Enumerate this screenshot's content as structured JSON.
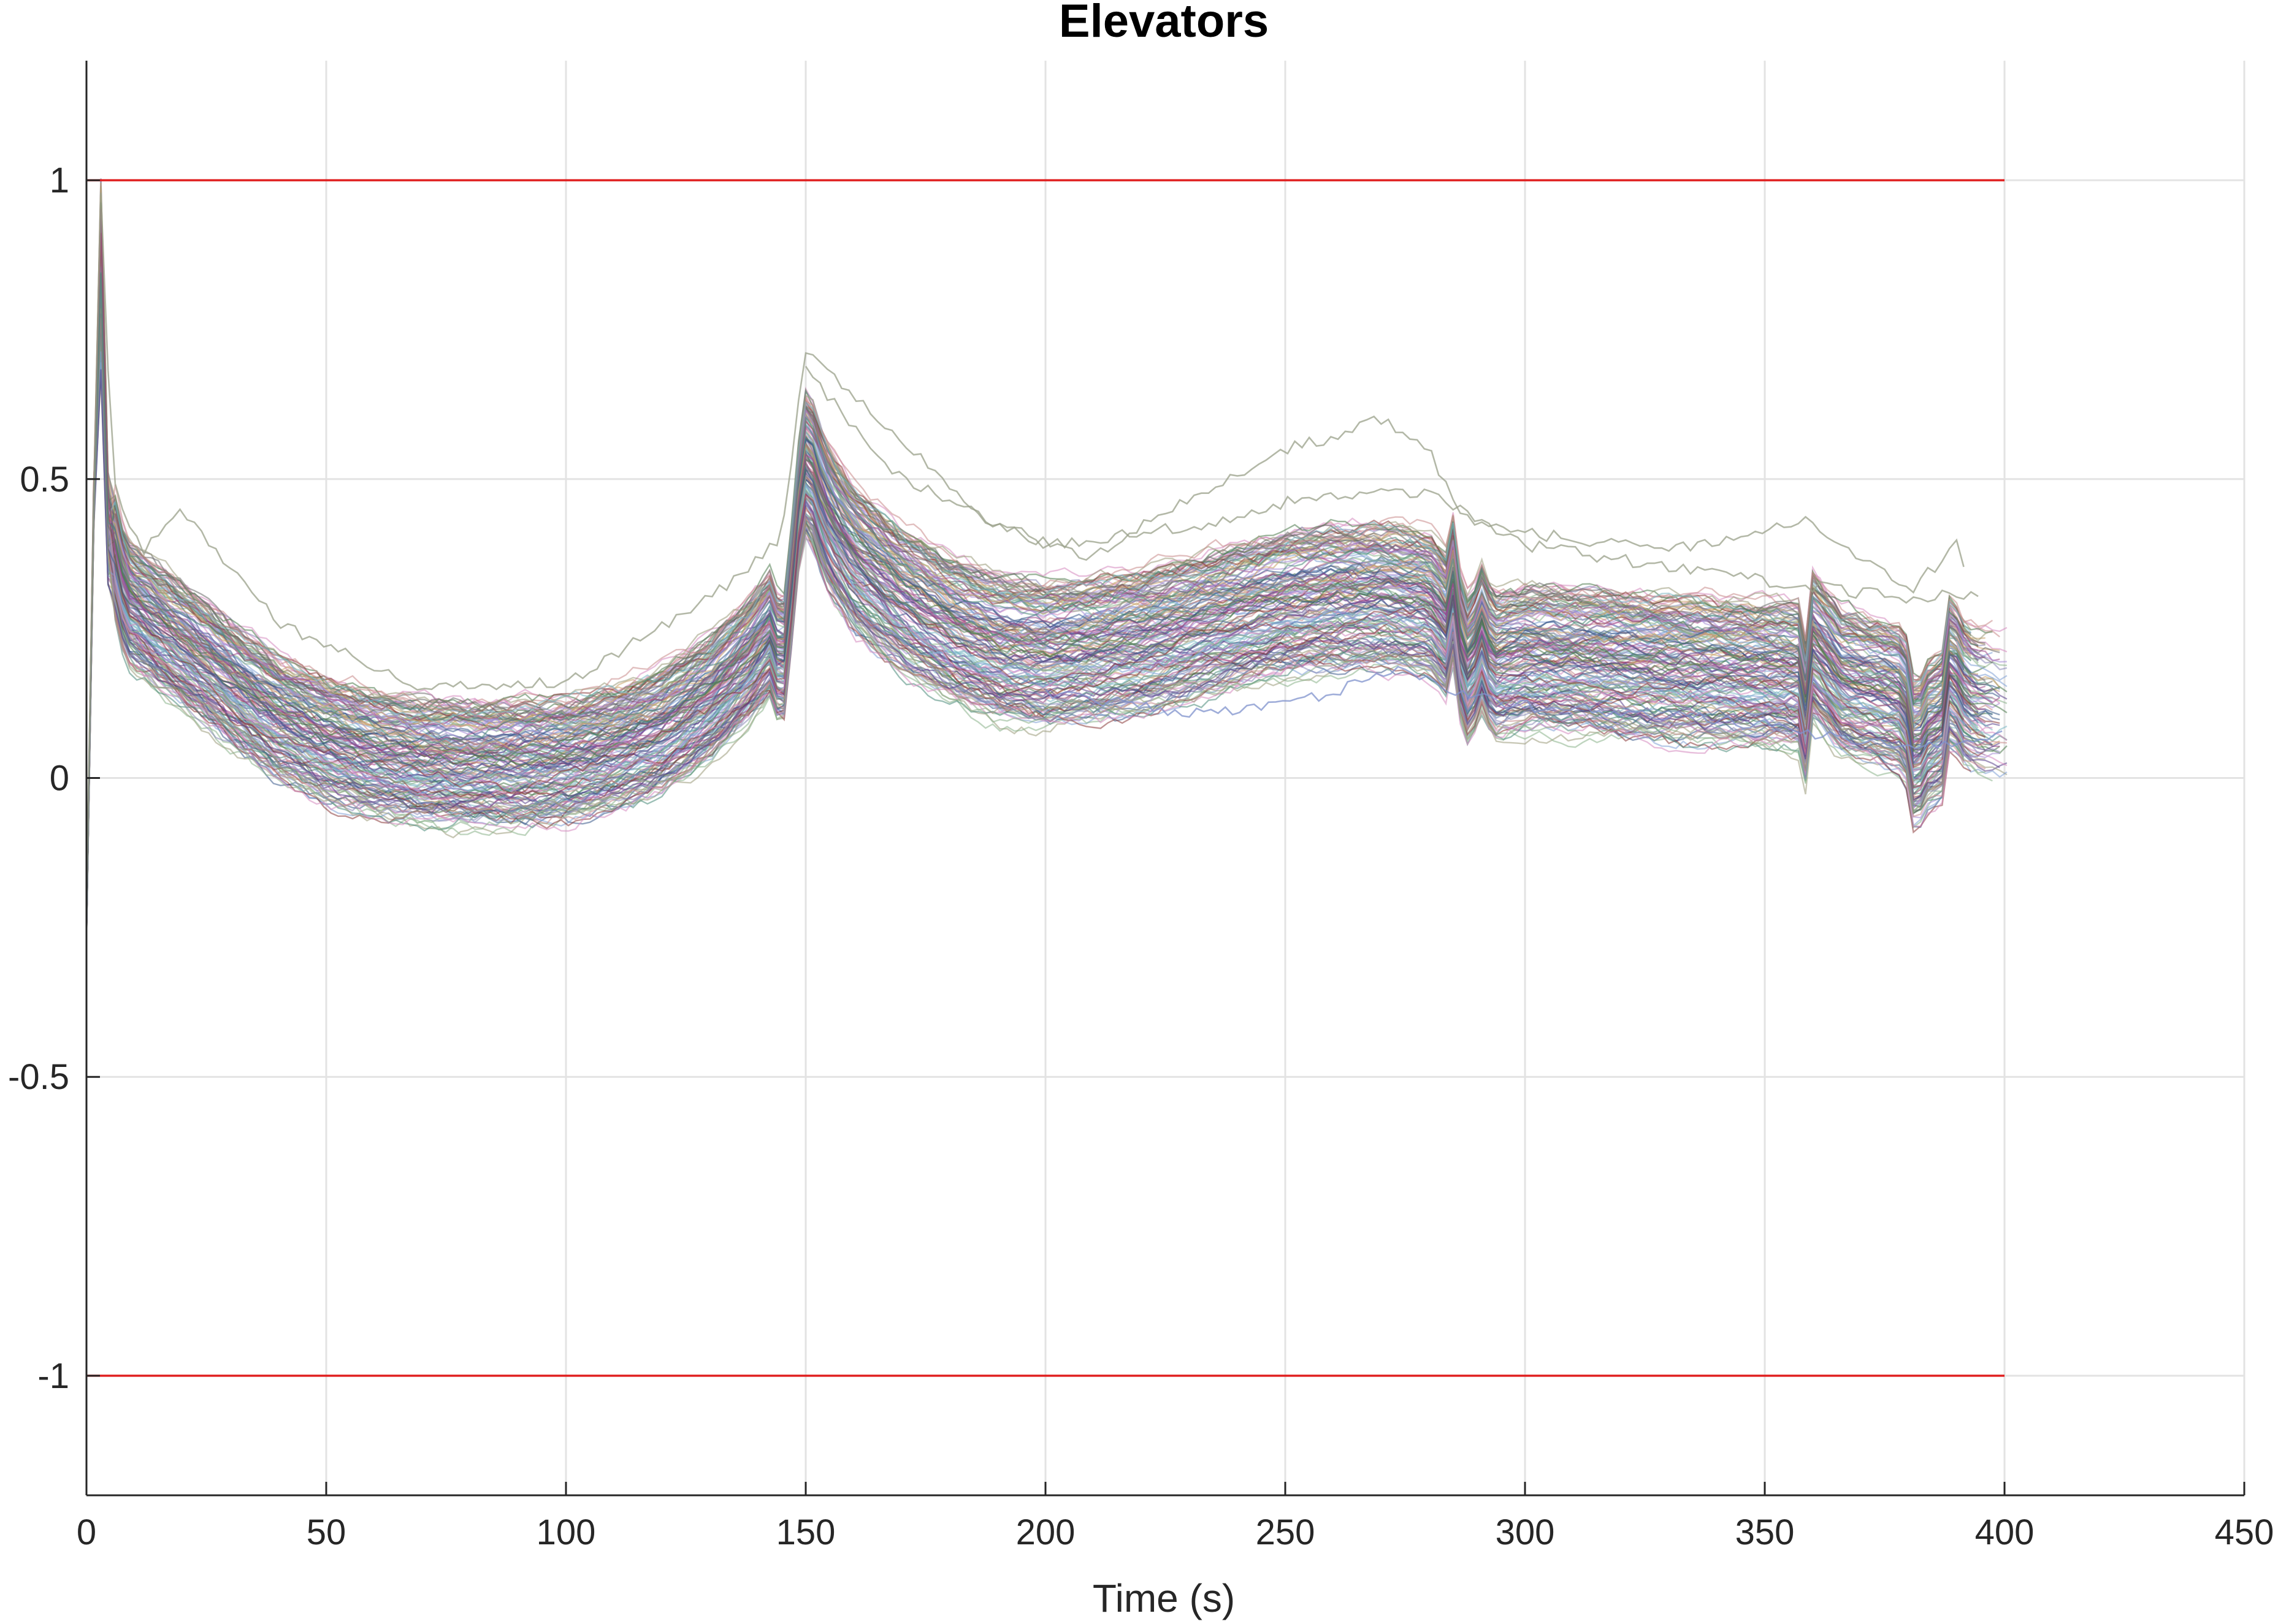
{
  "chart_data": {
    "type": "line",
    "title": "Elevators",
    "xlabel": "Time (s)",
    "ylabel": "",
    "xlim": [
      0,
      450
    ],
    "ylim": [
      -1.2,
      1.2
    ],
    "xticks": [
      0,
      50,
      100,
      150,
      200,
      250,
      300,
      350,
      400,
      450
    ],
    "yticks": [
      -1,
      -0.5,
      0,
      0.5,
      1
    ],
    "ytick_labels": [
      "-1",
      "-0.5",
      "0",
      "0.5",
      "1"
    ],
    "grid": true,
    "legend": "none",
    "limit_lines": {
      "color": "#e02020",
      "x_range": [
        0,
        400
      ],
      "values": [
        1,
        -1
      ]
    },
    "ensemble": {
      "description_of_envelope_not_shown": "",
      "profile": {
        "x": [
          0,
          0.8,
          1.8,
          2.6,
          3.4,
          4.2,
          5.2,
          6.2,
          7.4,
          9,
          12,
          15,
          20,
          30,
          40,
          50,
          60,
          70,
          80,
          90,
          100,
          110,
          120,
          130,
          138,
          143,
          145,
          147,
          149,
          150.5,
          152,
          155,
          160,
          170,
          180,
          190,
          200,
          210,
          220,
          230,
          240,
          250,
          260,
          270,
          280,
          283.5,
          285,
          287,
          289,
          290.5,
          292,
          294,
          300,
          310,
          320,
          330,
          340,
          350,
          357.5,
          358.5,
          360,
          363,
          366,
          370,
          375,
          379,
          380.5,
          381.5,
          383,
          385,
          387,
          388.5,
          389.5,
          391,
          394,
          398,
          402
        ],
        "y": [
          -0.25,
          0.1,
          0.6,
          0.85,
          0.78,
          0.45,
          0.3,
          0.4,
          0.33,
          0.3,
          0.28,
          0.26,
          0.23,
          0.165,
          0.11,
          0.075,
          0.05,
          0.035,
          0.03,
          0.032,
          0.04,
          0.06,
          0.09,
          0.14,
          0.2,
          0.25,
          0.17,
          0.32,
          0.5,
          0.55,
          0.5,
          0.44,
          0.38,
          0.31,
          0.26,
          0.225,
          0.215,
          0.225,
          0.24,
          0.26,
          0.28,
          0.3,
          0.31,
          0.315,
          0.305,
          0.27,
          0.33,
          0.2,
          0.19,
          0.26,
          0.22,
          0.2,
          0.21,
          0.205,
          0.2,
          0.195,
          0.19,
          0.185,
          0.18,
          0.12,
          0.23,
          0.2,
          0.17,
          0.16,
          0.15,
          0.14,
          0.09,
          0.02,
          0.08,
          0.09,
          0.1,
          0.19,
          0.19,
          0.16,
          0.14,
          0.135,
          0.13
        ]
      },
      "run_count": 160,
      "spread": {
        "low": -0.13,
        "high": 0.11
      },
      "outliers": [
        {
          "x": [
            0,
            2.6,
            3.4,
            5,
            7,
            12,
            20,
            40,
            70,
            100,
            130,
            145,
            150,
            165,
            190,
            210,
            230,
            250,
            260,
            270,
            280,
            285,
            290,
            300,
            330,
            360,
            380,
            390,
            392
          ],
          "y": [
            -0.2,
            0.95,
            1.0,
            0.55,
            0.45,
            0.38,
            0.45,
            0.26,
            0.15,
            0.16,
            0.3,
            0.4,
            0.72,
            0.6,
            0.42,
            0.37,
            0.47,
            0.55,
            0.57,
            0.6,
            0.55,
            0.46,
            0.42,
            0.41,
            0.38,
            0.43,
            0.31,
            0.39,
            0.34
          ]
        },
        {
          "x": [
            150,
            170,
            200,
            230,
            255,
            280,
            300,
            340,
            380,
            395
          ],
          "y": [
            0.68,
            0.5,
            0.39,
            0.42,
            0.47,
            0.48,
            0.39,
            0.34,
            0.3,
            0.31
          ]
        },
        {
          "x": [
            200,
            230,
            250,
            262,
            275,
            285,
            300,
            340,
            380,
            400
          ],
          "y": [
            0.14,
            0.11,
            0.12,
            0.15,
            0.18,
            0.14,
            0.12,
            0.1,
            0.05,
            0.07
          ]
        }
      ],
      "palette": [
        "#7fa0d6",
        "#c98b8b",
        "#8ab38a",
        "#a58ad6",
        "#c9a36a",
        "#7ab8c4",
        "#d68ac0",
        "#8a8ab8",
        "#4d7a4d",
        "#5a3f8a",
        "#8a3a3a",
        "#3a5a8a",
        "#9a9a7a",
        "#6b6b6b",
        "#a04b8a",
        "#4a8a7a"
      ]
    }
  }
}
